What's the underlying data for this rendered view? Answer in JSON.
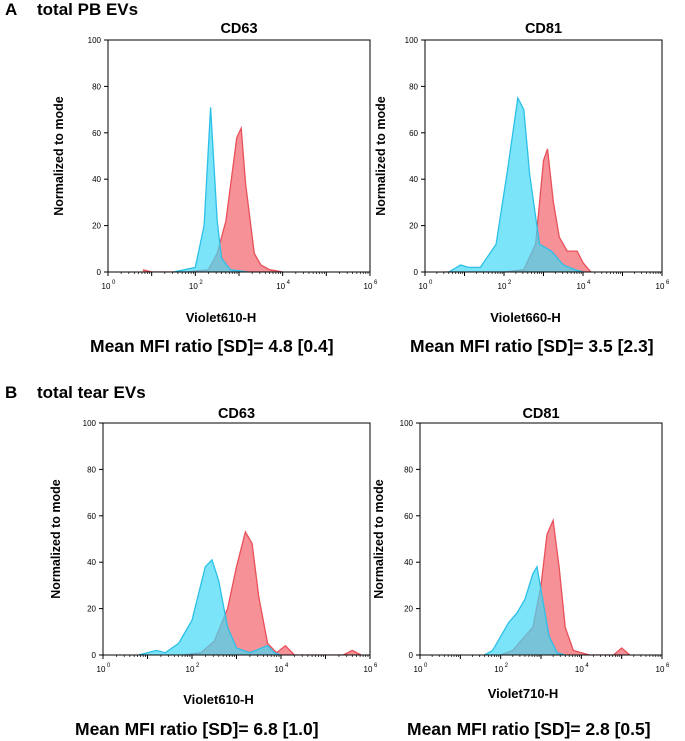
{
  "panels": [
    {
      "letter": "A",
      "title": "total PB EVs"
    },
    {
      "letter": "B",
      "title": "total tear EVs"
    }
  ],
  "colors": {
    "blue": "#44d8f5",
    "blue_line": "#2cc0e8",
    "red": "#f26c74",
    "red_line": "#e8505a",
    "overlap": "#a08aa8"
  },
  "chart_data": [
    {
      "type": "area",
      "panel": "A",
      "title": "CD63",
      "xlabel": "Violet610-H",
      "ylabel": "Normalized to mode",
      "xscale": "log",
      "xlim": [
        1,
        1000000
      ],
      "ylim": [
        0,
        100
      ],
      "yticks": [
        "0",
        "20",
        "40",
        "60",
        "80",
        "100"
      ],
      "xticks": [
        "10",
        "10",
        "10",
        "10"
      ],
      "xtick_exps": [
        "0",
        "2",
        "4",
        "6"
      ],
      "caption": "Mean MFI ratio [SD]= 4.8 [0.4]",
      "series": [
        {
          "name": "blue",
          "x": [
            1.5,
            2.0,
            2.2,
            2.35,
            2.5,
            2.6,
            2.8,
            3.2
          ],
          "y": [
            0,
            2,
            20,
            71,
            22,
            6,
            1,
            0
          ]
        },
        {
          "name": "red",
          "x": [
            0.8,
            1.0,
            1.3,
            1.8,
            2.3,
            2.5,
            2.7,
            2.95,
            3.05,
            3.15,
            3.35,
            3.5,
            3.7,
            4.0
          ],
          "y": [
            1,
            0,
            0,
            0,
            1,
            8,
            22,
            58,
            62,
            38,
            8,
            3,
            1,
            0
          ]
        }
      ]
    },
    {
      "type": "area",
      "panel": "A",
      "title": "CD81",
      "xlabel": "Violet660-H",
      "ylabel": "Normalized to mode",
      "xscale": "log",
      "xlim": [
        1,
        1000000
      ],
      "ylim": [
        0,
        100
      ],
      "yticks": [
        "0",
        "20",
        "40",
        "60",
        "80",
        "100"
      ],
      "xticks": [
        "10",
        "10",
        "10",
        "10"
      ],
      "xtick_exps": [
        "0",
        "2",
        "4",
        "6"
      ],
      "caption": "Mean MFI ratio [SD]= 3.5 [2.3]",
      "series": [
        {
          "name": "blue",
          "x": [
            0.6,
            0.9,
            1.1,
            1.4,
            1.8,
            2.1,
            2.35,
            2.5,
            2.65,
            2.9,
            3.2,
            3.5,
            3.8,
            4.0
          ],
          "y": [
            0,
            3,
            2,
            2,
            12,
            45,
            75,
            70,
            42,
            12,
            9,
            3,
            1,
            0
          ]
        },
        {
          "name": "red",
          "x": [
            0.5,
            1.0,
            2.0,
            2.5,
            2.8,
            3.0,
            3.1,
            3.25,
            3.4,
            3.6,
            3.85,
            4.0,
            4.2
          ],
          "y": [
            0,
            0,
            0,
            1,
            12,
            48,
            53,
            30,
            15,
            9,
            9,
            4,
            0
          ]
        }
      ]
    },
    {
      "type": "area",
      "panel": "B",
      "title": "CD63",
      "xlabel": "Violet610-H",
      "ylabel": "Normalized to mode",
      "xscale": "log",
      "xlim": [
        1,
        1000000
      ],
      "ylim": [
        0,
        100
      ],
      "yticks": [
        "0",
        "20",
        "40",
        "60",
        "80",
        "100"
      ],
      "xticks": [
        "10",
        "10",
        "10",
        "10"
      ],
      "xtick_exps": [
        "0",
        "2",
        "4",
        "6"
      ],
      "caption": "Mean MFI ratio [SD]= 6.8 [1.0]",
      "series": [
        {
          "name": "blue",
          "x": [
            0.8,
            1.2,
            1.4,
            1.7,
            2.0,
            2.3,
            2.45,
            2.6,
            2.8,
            3.0,
            3.3,
            3.7,
            3.85,
            4.0
          ],
          "y": [
            0,
            2,
            1,
            5,
            15,
            38,
            41,
            32,
            12,
            3,
            1,
            4,
            1,
            0
          ]
        },
        {
          "name": "red",
          "x": [
            1.8,
            2.2,
            2.5,
            2.8,
            3.0,
            3.2,
            3.35,
            3.5,
            3.7,
            3.9,
            4.1,
            4.3,
            5.4,
            5.6,
            5.8
          ],
          "y": [
            0,
            1,
            6,
            20,
            38,
            53,
            48,
            25,
            5,
            1,
            4,
            0,
            0,
            2,
            0
          ]
        }
      ]
    },
    {
      "type": "area",
      "panel": "B",
      "title": "CD81",
      "xlabel": "Violet710-H",
      "ylabel": "Normalized to mode",
      "xscale": "log",
      "xlim": [
        1,
        1000000
      ],
      "ylim": [
        0,
        100
      ],
      "yticks": [
        "0",
        "20",
        "40",
        "60",
        "80",
        "100"
      ],
      "xticks": [
        "10",
        "10",
        "10",
        "10"
      ],
      "xtick_exps": [
        "0",
        "2",
        "4",
        "6"
      ],
      "caption": "Mean MFI ratio [SD]= 2.8 [0.5]",
      "series": [
        {
          "name": "blue",
          "x": [
            1.6,
            1.8,
            2.0,
            2.2,
            2.4,
            2.6,
            2.8,
            2.9,
            3.0,
            3.2,
            3.4,
            3.6
          ],
          "y": [
            0,
            2,
            8,
            14,
            18,
            24,
            35,
            38,
            28,
            8,
            1,
            0
          ]
        },
        {
          "name": "red",
          "x": [
            2.0,
            2.3,
            2.5,
            2.8,
            3.0,
            3.15,
            3.3,
            3.45,
            3.6,
            3.8,
            4.0,
            4.2,
            4.8,
            5.0,
            5.2
          ],
          "y": [
            0,
            2,
            6,
            12,
            30,
            52,
            58,
            38,
            12,
            2,
            1,
            0,
            0,
            3,
            0
          ]
        }
      ]
    }
  ]
}
